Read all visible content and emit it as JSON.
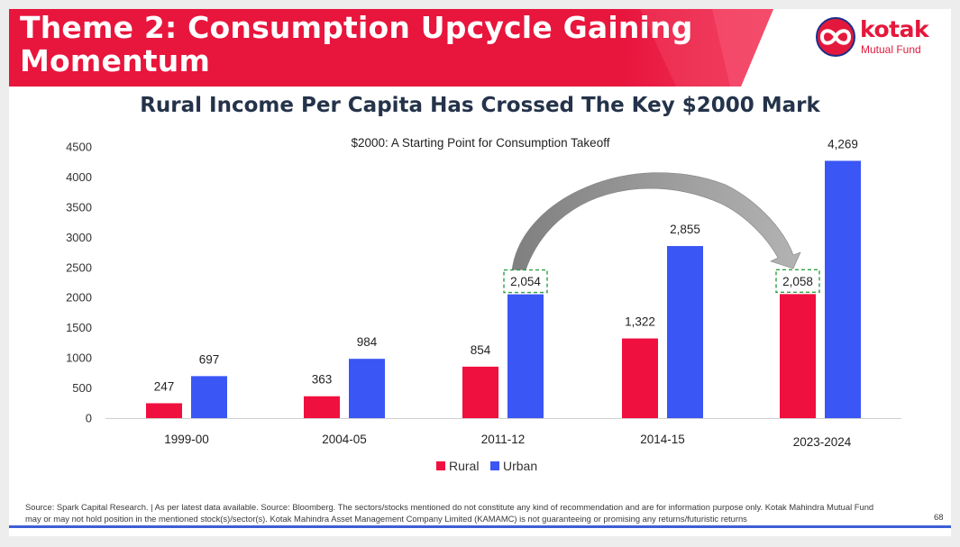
{
  "header": {
    "title": "Theme 2: Consumption Upcycle Gaining Momentum",
    "brand": "kotak",
    "brand_sub": "Mutual Fund"
  },
  "chart_data": {
    "type": "bar",
    "title": "Rural Income Per Capita Has Crossed The Key $2000 Mark",
    "subtitle": "$2000: A Starting Point for Consumption Takeoff",
    "categories": [
      "1999-00",
      "2004-05",
      "2011-12",
      "2014-15",
      "2023-2024"
    ],
    "series": [
      {
        "name": "Rural",
        "values": [
          247,
          363,
          854,
          1322,
          2058
        ],
        "labels": [
          "247",
          "363",
          "854",
          "1,322",
          "2,058"
        ],
        "color": "#f0103f"
      },
      {
        "name": "Urban",
        "values": [
          697,
          984,
          2054,
          2855,
          4269
        ],
        "labels": [
          "697",
          "984",
          "2,054",
          "2,855",
          "4,269"
        ],
        "color": "#3a56f5"
      }
    ],
    "ylim": [
      0,
      4500
    ],
    "yticks": [
      "0",
      "500",
      "1000",
      "1500",
      "2000",
      "2500",
      "3000",
      "3500",
      "4000",
      "4500"
    ],
    "legend_position": "bottom-center",
    "annotations": "Curved arrow from the 2011-12 Urban value 2,054 to the 2023-2024 Rural value 2,058; both values boxed with green dashed outlines"
  },
  "colors": {
    "accent": "#e8153d",
    "rural": "#f0103f",
    "urban": "#3a56f5",
    "title": "#24334a",
    "highlight_box": "#2ea043",
    "arrow": "#8c8c8c"
  },
  "footer": {
    "source": "Source: Spark Capital Research.  | As per latest data available. Source: Bloomberg. The sectors/stocks mentioned do not constitute any kind of recommendation and are for information purpose only. Kotak Mahindra Mutual Fund may or may not hold position in the mentioned stock(s)/sector(s). Kotak Mahindra Asset Management Company Limited (KAMAMC) is not guaranteeing or promising any returns/futuristic returns",
    "page_number": "68"
  }
}
